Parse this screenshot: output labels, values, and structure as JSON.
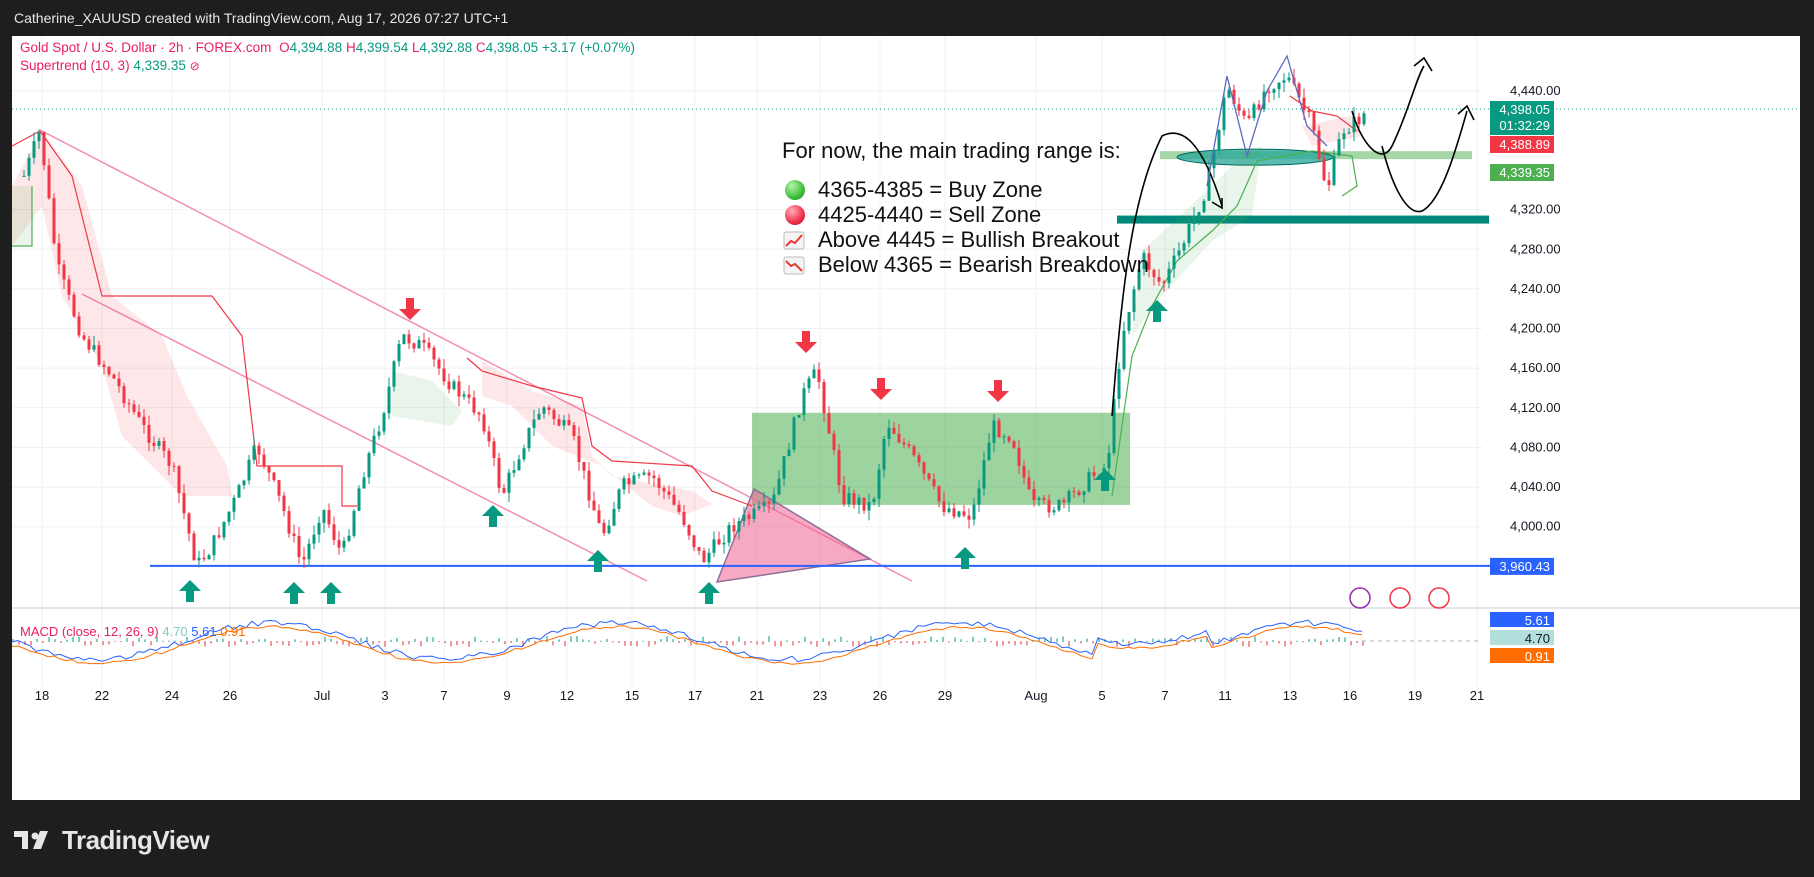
{
  "watermark": "Catherine_XAUUSD created with TradingView.com, Aug 17, 2026 07:27 UTC+1",
  "legend": {
    "symbol": "Gold Spot / U.S. Dollar · 2h · FOREX.com",
    "o_label": "O",
    "o": "4,394.88",
    "h_label": "H",
    "h": "4,399.54",
    "l_label": "L",
    "l": "4,392.88",
    "c_label": "C",
    "c": "4,398.05",
    "change": "+3.17 (+0.07%)",
    "supertrend_label": "Supertrend (10, 3)",
    "supertrend_value": "4,339.35",
    "supertrend_icon": "hidden-eye-icon"
  },
  "note": {
    "heading": "For now, the main trading range is:",
    "lines": [
      {
        "icon": "green-circle-icon",
        "text": "4365-4385 = Buy Zone"
      },
      {
        "icon": "red-circle-icon",
        "text": "4425-4440 = Sell Zone"
      },
      {
        "icon": "chart-up-icon",
        "text": "Above 4445 = Bullish Breakout"
      },
      {
        "icon": "chart-down-icon",
        "text": "Below 4365 = Bearish Breakdown"
      }
    ]
  },
  "price_tags": {
    "last": "4,398.05",
    "countdown": "01:32:29",
    "upper_band": "4,388.89",
    "supertrend": "4,339.35",
    "support_line": "3,960.43"
  },
  "macd": {
    "label": "MACD (close, 12, 26, 9)",
    "hist": "4.70",
    "macd": "5.61",
    "signal": "0.91"
  },
  "footer": {
    "brand": "TradingView",
    "logo": "tradingview-logo-icon"
  },
  "colors": {
    "bull": "#089981",
    "bear": "#f23645",
    "support": "#2962ff",
    "zone_green": "#4caf50",
    "supertrend_up": "#4caf50",
    "supertrend_down": "#f23645",
    "triangle": "#e91e63",
    "macd": "#2962ff",
    "signal": "#ff6d00"
  },
  "chart_data": {
    "type": "line",
    "title": "Gold Spot / U.S. Dollar · 2h · FOREX.com",
    "x": [
      "18",
      "22",
      "24",
      "26",
      "Jul",
      "3",
      "7",
      "9",
      "12",
      "15",
      "17",
      "21",
      "23",
      "26",
      "29",
      "Aug",
      "5",
      "7",
      "11",
      "13",
      "16",
      "19",
      "21"
    ],
    "y_ticks": [
      4000,
      4040,
      4080,
      4120,
      4160,
      4200,
      4240,
      4280,
      4320,
      4440
    ],
    "y_tick_labels": [
      "4,000.00",
      "4,040.00",
      "4,080.00",
      "4,120.00",
      "4,160.00",
      "4,200.00",
      "4,240.00",
      "4,280.00",
      "4,320.00",
      "4,440.00"
    ],
    "ylim": [
      3925,
      4465
    ],
    "grid": true,
    "series": [
      {
        "name": "Gold Spot / U.S. Dollar",
        "x": [
          "18",
          "22",
          "24",
          "26",
          "Jul",
          "3",
          "7",
          "9",
          "12",
          "15",
          "17",
          "21",
          "23",
          "26",
          "29",
          "Aug",
          "5",
          "7",
          "11",
          "13",
          "16"
        ],
        "values": [
          4370,
          4200,
          4100,
          3990,
          4005,
          4190,
          4140,
          4040,
          4020,
          4070,
          3990,
          4090,
          4150,
          4095,
          4050,
          4070,
          4080,
          4270,
          4400,
          4380,
          4398
        ]
      }
    ],
    "levels": {
      "support": 3960.43,
      "buy_zone_line": 4375,
      "lower_range_line": 4310,
      "consolidation_box": [
        4022,
        4115
      ]
    },
    "macd": {
      "hist": 4.7,
      "macd": 5.61,
      "signal": 0.91
    }
  }
}
